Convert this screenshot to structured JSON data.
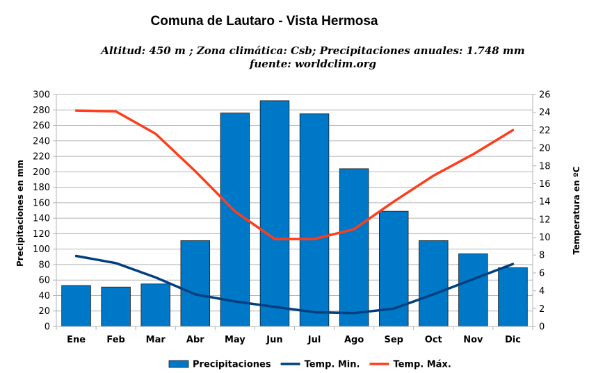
{
  "title": "Comuna de Lautaro - Vista Hermosa",
  "subtitle_line1": "Altitud: 450 m ;  Zona climática: Csb;  Precipitaciones anuales: 1.748 mm",
  "subtitle_line2": "fuente: worldclim.org",
  "chart_data": {
    "type": "bar",
    "categories": [
      "Ene",
      "Feb",
      "Mar",
      "Abr",
      "May",
      "Jun",
      "Jul",
      "Ago",
      "Sep",
      "Oct",
      "Nov",
      "Dic"
    ],
    "series": [
      {
        "name": "Precipitaciones",
        "type": "bar",
        "axis": "left",
        "color": "#0078c8",
        "values": [
          53,
          51,
          55,
          111,
          276,
          292,
          275,
          204,
          149,
          111,
          94,
          76
        ]
      },
      {
        "name": "Temp. Min.",
        "type": "line",
        "axis": "right",
        "color": "#003f7f",
        "values": [
          7.9,
          7.1,
          5.5,
          3.6,
          2.8,
          2.2,
          1.6,
          1.5,
          2.0,
          3.6,
          5.3,
          7.0
        ]
      },
      {
        "name": "Temp. Máx.",
        "type": "line",
        "axis": "right",
        "color": "#ff3d1a",
        "values": [
          24.2,
          24.1,
          21.6,
          17.4,
          12.9,
          9.8,
          9.8,
          10.9,
          14.0,
          16.9,
          19.3,
          22.0
        ]
      }
    ],
    "ylabel": "Precipitaciones en mm",
    "y2label": "Temperatura en ºC",
    "ylim": [
      0,
      300
    ],
    "yticks": [
      0,
      20,
      40,
      60,
      80,
      100,
      120,
      140,
      160,
      180,
      200,
      220,
      240,
      260,
      280,
      300
    ],
    "y2lim": [
      0,
      26
    ],
    "y2ticks": [
      0,
      2,
      4,
      6,
      8,
      10,
      12,
      14,
      16,
      18,
      20,
      22,
      24,
      26
    ],
    "grid": true,
    "legend_position": "bottom"
  }
}
